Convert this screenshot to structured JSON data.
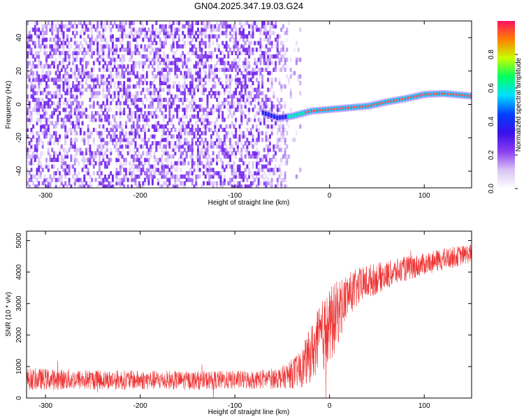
{
  "title": "GN04.2025.347.19.03.G24",
  "chart_data": [
    {
      "type": "heatmap",
      "xlabel": "Height of straight line (km)",
      "ylabel": "Frequency (Hz)",
      "xlim": [
        -320,
        150
      ],
      "ylim": [
        -50,
        50
      ],
      "xticks": [
        -300,
        -200,
        -100,
        0,
        100
      ],
      "yticks": [
        -40,
        -20,
        0,
        20,
        40
      ],
      "colorbar": {
        "label": "Normalized spectral amplitude",
        "range": [
          0,
          1
        ],
        "ticks": [
          "0.0",
          "0.2",
          "0.4",
          "0.6",
          "0.8"
        ],
        "colors": [
          "#ffffff",
          "#d9c4f5",
          "#8a3cf0",
          "#3a10e8",
          "#0040ff",
          "#00e0ff",
          "#00ff60",
          "#c8ff00",
          "#ff8000",
          "#ff1060"
        ]
      },
      "signal_track": {
        "x": [
          -70,
          -55,
          -40,
          -20,
          0,
          20,
          40,
          60,
          80,
          100,
          120,
          140,
          150
        ],
        "freq": [
          -5,
          -8,
          -7,
          -4,
          -3,
          -2,
          -1,
          1.5,
          3.5,
          6,
          6.5,
          5.5,
          5
        ]
      }
    },
    {
      "type": "line",
      "xlabel": "Height of straight line (km)",
      "ylabel": "SNR (10 * v/v)",
      "xlim": [
        -320,
        150
      ],
      "ylim": [
        0,
        5300
      ],
      "xticks": [
        -300,
        -200,
        -100,
        0,
        100
      ],
      "yticks": [
        0,
        1000,
        2000,
        3000,
        4000,
        5000
      ],
      "color": "#ee3333",
      "envelope": {
        "x": [
          -320,
          -250,
          -150,
          -80,
          -50,
          -30,
          -20,
          -10,
          0,
          10,
          20,
          40,
          60,
          80,
          100,
          120,
          150
        ],
        "mean": [
          600,
          580,
          560,
          580,
          650,
          900,
          1400,
          1900,
          2200,
          2800,
          3300,
          3700,
          3900,
          4100,
          4250,
          4400,
          4600
        ],
        "spread": [
          350,
          320,
          300,
          300,
          350,
          600,
          900,
          1100,
          1300,
          1000,
          700,
          550,
          450,
          400,
          350,
          350,
          300
        ]
      }
    }
  ]
}
